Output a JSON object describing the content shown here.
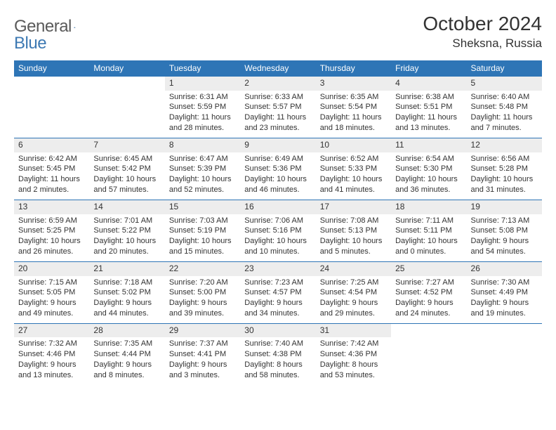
{
  "logo": {
    "general": "General",
    "blue": "Blue"
  },
  "title": "October 2024",
  "location": "Sheksna, Russia",
  "header_bg": "#2e75b6",
  "header_fg": "#ffffff",
  "daynum_bg": "#ededed",
  "row_border": "#2e75b6",
  "text_color": "#333333",
  "days": [
    "Sunday",
    "Monday",
    "Tuesday",
    "Wednesday",
    "Thursday",
    "Friday",
    "Saturday"
  ],
  "weeks": [
    [
      null,
      null,
      {
        "n": "1",
        "sr": "6:31 AM",
        "ss": "5:59 PM",
        "dl": "11 hours and 28 minutes."
      },
      {
        "n": "2",
        "sr": "6:33 AM",
        "ss": "5:57 PM",
        "dl": "11 hours and 23 minutes."
      },
      {
        "n": "3",
        "sr": "6:35 AM",
        "ss": "5:54 PM",
        "dl": "11 hours and 18 minutes."
      },
      {
        "n": "4",
        "sr": "6:38 AM",
        "ss": "5:51 PM",
        "dl": "11 hours and 13 minutes."
      },
      {
        "n": "5",
        "sr": "6:40 AM",
        "ss": "5:48 PM",
        "dl": "11 hours and 7 minutes."
      }
    ],
    [
      {
        "n": "6",
        "sr": "6:42 AM",
        "ss": "5:45 PM",
        "dl": "11 hours and 2 minutes."
      },
      {
        "n": "7",
        "sr": "6:45 AM",
        "ss": "5:42 PM",
        "dl": "10 hours and 57 minutes."
      },
      {
        "n": "8",
        "sr": "6:47 AM",
        "ss": "5:39 PM",
        "dl": "10 hours and 52 minutes."
      },
      {
        "n": "9",
        "sr": "6:49 AM",
        "ss": "5:36 PM",
        "dl": "10 hours and 46 minutes."
      },
      {
        "n": "10",
        "sr": "6:52 AM",
        "ss": "5:33 PM",
        "dl": "10 hours and 41 minutes."
      },
      {
        "n": "11",
        "sr": "6:54 AM",
        "ss": "5:30 PM",
        "dl": "10 hours and 36 minutes."
      },
      {
        "n": "12",
        "sr": "6:56 AM",
        "ss": "5:28 PM",
        "dl": "10 hours and 31 minutes."
      }
    ],
    [
      {
        "n": "13",
        "sr": "6:59 AM",
        "ss": "5:25 PM",
        "dl": "10 hours and 26 minutes."
      },
      {
        "n": "14",
        "sr": "7:01 AM",
        "ss": "5:22 PM",
        "dl": "10 hours and 20 minutes."
      },
      {
        "n": "15",
        "sr": "7:03 AM",
        "ss": "5:19 PM",
        "dl": "10 hours and 15 minutes."
      },
      {
        "n": "16",
        "sr": "7:06 AM",
        "ss": "5:16 PM",
        "dl": "10 hours and 10 minutes."
      },
      {
        "n": "17",
        "sr": "7:08 AM",
        "ss": "5:13 PM",
        "dl": "10 hours and 5 minutes."
      },
      {
        "n": "18",
        "sr": "7:11 AM",
        "ss": "5:11 PM",
        "dl": "10 hours and 0 minutes."
      },
      {
        "n": "19",
        "sr": "7:13 AM",
        "ss": "5:08 PM",
        "dl": "9 hours and 54 minutes."
      }
    ],
    [
      {
        "n": "20",
        "sr": "7:15 AM",
        "ss": "5:05 PM",
        "dl": "9 hours and 49 minutes."
      },
      {
        "n": "21",
        "sr": "7:18 AM",
        "ss": "5:02 PM",
        "dl": "9 hours and 44 minutes."
      },
      {
        "n": "22",
        "sr": "7:20 AM",
        "ss": "5:00 PM",
        "dl": "9 hours and 39 minutes."
      },
      {
        "n": "23",
        "sr": "7:23 AM",
        "ss": "4:57 PM",
        "dl": "9 hours and 34 minutes."
      },
      {
        "n": "24",
        "sr": "7:25 AM",
        "ss": "4:54 PM",
        "dl": "9 hours and 29 minutes."
      },
      {
        "n": "25",
        "sr": "7:27 AM",
        "ss": "4:52 PM",
        "dl": "9 hours and 24 minutes."
      },
      {
        "n": "26",
        "sr": "7:30 AM",
        "ss": "4:49 PM",
        "dl": "9 hours and 19 minutes."
      }
    ],
    [
      {
        "n": "27",
        "sr": "7:32 AM",
        "ss": "4:46 PM",
        "dl": "9 hours and 13 minutes."
      },
      {
        "n": "28",
        "sr": "7:35 AM",
        "ss": "4:44 PM",
        "dl": "9 hours and 8 minutes."
      },
      {
        "n": "29",
        "sr": "7:37 AM",
        "ss": "4:41 PM",
        "dl": "9 hours and 3 minutes."
      },
      {
        "n": "30",
        "sr": "7:40 AM",
        "ss": "4:38 PM",
        "dl": "8 hours and 58 minutes."
      },
      {
        "n": "31",
        "sr": "7:42 AM",
        "ss": "4:36 PM",
        "dl": "8 hours and 53 minutes."
      },
      null,
      null
    ]
  ],
  "labels": {
    "sunrise": "Sunrise:",
    "sunset": "Sunset:",
    "daylight": "Daylight:"
  }
}
